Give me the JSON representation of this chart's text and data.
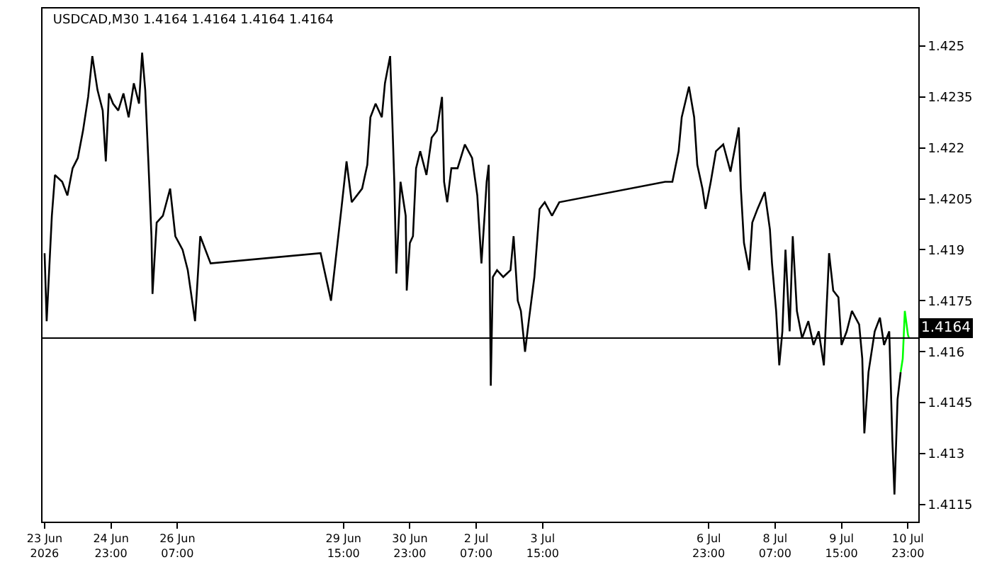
{
  "chart_data": {
    "type": "line",
    "title": "USDCAD,M30 1.4164 1.4164 1.4164 1.4164",
    "xlim": [
      "2026-06-23T14:00",
      "2026-07-11T04:00"
    ],
    "xticks": [
      {
        "value": "2026-06-23T15:00",
        "label": "23 Jun 2026"
      },
      {
        "value": "2026-06-24T23:00",
        "label": "24 Jun 23:00"
      },
      {
        "value": "2026-06-26T07:00",
        "label": "26 Jun 07:00"
      },
      {
        "value": "2026-06-29T15:00",
        "label": "29 Jun 15:00"
      },
      {
        "value": "2026-06-30T23:00",
        "label": "30 Jun 23:00"
      },
      {
        "value": "2026-07-02T07:00",
        "label": "2 Jul 07:00"
      },
      {
        "value": "2026-07-03T15:00",
        "label": "3 Jul 15:00"
      },
      {
        "value": "2026-07-06T23:00",
        "label": "6 Jul 23:00"
      },
      {
        "value": "2026-07-08T07:00",
        "label": "8 Jul 07:00"
      },
      {
        "value": "2026-07-09T15:00",
        "label": "9 Jul 15:00"
      },
      {
        "value": "2026-07-10T23:00",
        "label": "10 Jul 23:00"
      }
    ],
    "ylim": [
      1.411,
      1.4261
    ],
    "yticks": [
      1.4115,
      1.413,
      1.4145,
      1.416,
      1.4175,
      1.419,
      1.4205,
      1.422,
      1.4235,
      1.425
    ],
    "grid": false,
    "marker": "none",
    "line_style": "solid",
    "ref_lines": [
      {
        "axis": "y",
        "value": 1.4164,
        "label": "1.4164",
        "color": "#000000"
      }
    ],
    "series": [
      {
        "color": "#000000",
        "x": [
          "2026-06-23T15:00",
          "2026-06-23T16:00",
          "2026-06-23T18:30",
          "2026-06-23T20:00",
          "2026-06-23T23:30",
          "2026-06-24T02:00",
          "2026-06-24T04:30",
          "2026-06-24T07:00",
          "2026-06-24T09:30",
          "2026-06-24T12:00",
          "2026-06-24T14:00",
          "2026-06-24T16:30",
          "2026-06-24T19:00",
          "2026-06-24T20:30",
          "2026-06-24T22:00",
          "2026-06-25T00:00",
          "2026-06-25T02:30",
          "2026-06-25T05:00",
          "2026-06-25T07:30",
          "2026-06-25T10:00",
          "2026-06-25T12:30",
          "2026-06-25T14:00",
          "2026-06-25T15:30",
          "2026-06-25T17:00",
          "2026-06-25T18:30",
          "2026-06-25T19:00",
          "2026-06-25T21:00",
          "2026-06-26T00:00",
          "2026-06-26T03:30",
          "2026-06-26T06:00",
          "2026-06-26T09:30",
          "2026-06-26T12:00",
          "2026-06-26T15:30",
          "2026-06-26T18:00",
          "2026-06-26T20:30",
          "2026-06-26T23:00",
          "2026-06-29T04:00",
          "2026-06-29T09:00",
          "2026-06-29T14:00",
          "2026-06-29T16:30",
          "2026-06-29T19:00",
          "2026-06-30T00:00",
          "2026-06-30T02:30",
          "2026-06-30T04:00",
          "2026-06-30T06:30",
          "2026-06-30T09:30",
          "2026-06-30T11:00",
          "2026-06-30T13:30",
          "2026-06-30T14:30",
          "2026-06-30T15:30",
          "2026-06-30T16:30",
          "2026-06-30T18:30",
          "2026-06-30T21:00",
          "2026-06-30T21:30",
          "2026-06-30T23:00",
          "2026-07-01T00:30",
          "2026-07-01T02:00",
          "2026-07-01T04:00",
          "2026-07-01T07:00",
          "2026-07-01T09:30",
          "2026-07-01T12:00",
          "2026-07-01T14:30",
          "2026-07-01T15:30",
          "2026-07-01T17:00",
          "2026-07-01T19:00",
          "2026-07-01T22:00",
          "2026-07-02T01:30",
          "2026-07-02T05:00",
          "2026-07-02T07:30",
          "2026-07-02T09:30",
          "2026-07-02T11:00",
          "2026-07-02T12:00",
          "2026-07-02T13:00",
          "2026-07-02T14:00",
          "2026-07-02T15:00",
          "2026-07-02T17:00",
          "2026-07-02T20:00",
          "2026-07-02T23:30",
          "2026-07-03T01:00",
          "2026-07-03T03:00",
          "2026-07-03T04:30",
          "2026-07-03T06:30",
          "2026-07-03T08:30",
          "2026-07-03T11:00",
          "2026-07-03T13:30",
          "2026-07-03T16:00",
          "2026-07-03T19:30",
          "2026-07-03T23:00",
          "2026-07-06T02:00",
          "2026-07-06T05:30",
          "2026-07-06T08:30",
          "2026-07-06T10:00",
          "2026-07-06T13:30",
          "2026-07-06T16:00",
          "2026-07-06T17:30",
          "2026-07-06T20:00",
          "2026-07-06T21:30",
          "2026-07-07T00:00",
          "2026-07-07T02:30",
          "2026-07-07T06:00",
          "2026-07-07T09:30",
          "2026-07-07T13:30",
          "2026-07-07T14:30",
          "2026-07-07T16:00",
          "2026-07-07T18:30",
          "2026-07-07T20:00",
          "2026-07-07T22:30",
          "2026-07-08T02:00",
          "2026-07-08T04:30",
          "2026-07-08T05:30",
          "2026-07-08T07:30",
          "2026-07-08T09:00",
          "2026-07-08T10:30",
          "2026-07-08T12:00",
          "2026-07-08T14:00",
          "2026-07-08T15:30",
          "2026-07-08T17:30",
          "2026-07-08T20:00",
          "2026-07-08T23:00",
          "2026-07-09T01:30",
          "2026-07-09T04:00",
          "2026-07-09T06:30",
          "2026-07-09T08:30",
          "2026-07-09T09:00",
          "2026-07-09T11:00",
          "2026-07-09T13:30",
          "2026-07-09T15:00",
          "2026-07-09T17:30",
          "2026-07-09T20:00",
          "2026-07-09T23:30",
          "2026-07-10T01:00",
          "2026-07-10T02:00",
          "2026-07-10T04:00",
          "2026-07-10T07:00",
          "2026-07-10T09:30",
          "2026-07-10T11:30",
          "2026-07-10T14:00",
          "2026-07-10T15:30",
          "2026-07-10T16:30",
          "2026-07-10T18:00",
          "2026-07-10T19:30"
        ],
        "values": [
          1.4189,
          1.4169,
          1.42,
          1.4212,
          1.421,
          1.4206,
          1.4214,
          1.4217,
          1.4225,
          1.4235,
          1.4247,
          1.4237,
          1.4231,
          1.4216,
          1.4236,
          1.4233,
          1.4231,
          1.4236,
          1.4229,
          1.4239,
          1.4233,
          1.4248,
          1.4237,
          1.4216,
          1.4194,
          1.4177,
          1.4198,
          1.42,
          1.4208,
          1.4194,
          1.419,
          1.4184,
          1.4169,
          1.4194,
          1.419,
          1.4186,
          1.4189,
          1.4175,
          1.4202,
          1.4216,
          1.4204,
          1.4208,
          1.4215,
          1.4229,
          1.4233,
          1.4229,
          1.4239,
          1.4247,
          1.4229,
          1.421,
          1.4183,
          1.421,
          1.42,
          1.4178,
          1.4192,
          1.4194,
          1.4214,
          1.4219,
          1.4212,
          1.4223,
          1.4225,
          1.4235,
          1.421,
          1.4204,
          1.4214,
          1.4214,
          1.4221,
          1.4217,
          1.4206,
          1.4186,
          1.42,
          1.421,
          1.4215,
          1.415,
          1.4182,
          1.4184,
          1.4182,
          1.4184,
          1.4194,
          1.4175,
          1.4172,
          1.416,
          1.417,
          1.4182,
          1.4202,
          1.4204,
          1.42,
          1.4204,
          1.421,
          1.421,
          1.4219,
          1.4229,
          1.4238,
          1.4229,
          1.4215,
          1.4208,
          1.4202,
          1.421,
          1.4219,
          1.4221,
          1.4213,
          1.4226,
          1.4208,
          1.4192,
          1.4184,
          1.4198,
          1.4202,
          1.4207,
          1.4196,
          1.4186,
          1.4172,
          1.4156,
          1.4166,
          1.419,
          1.4166,
          1.4194,
          1.4172,
          1.4164,
          1.4169,
          1.4162,
          1.4166,
          1.4156,
          1.4182,
          1.4189,
          1.4178,
          1.4176,
          1.4162,
          1.4166,
          1.4172,
          1.4168,
          1.4158,
          1.4136,
          1.4154,
          1.4166,
          1.417,
          1.4162,
          1.4166,
          1.4134,
          1.4118,
          1.4146,
          1.4154
        ]
      },
      {
        "color": "#00ff00",
        "x": [
          "2026-07-10T19:30",
          "2026-07-10T20:30",
          "2026-07-10T21:30",
          "2026-07-10T23:00",
          "2026-07-10T23:30"
        ],
        "values": [
          1.4154,
          1.4158,
          1.4172,
          1.4165,
          1.4164
        ]
      }
    ]
  }
}
